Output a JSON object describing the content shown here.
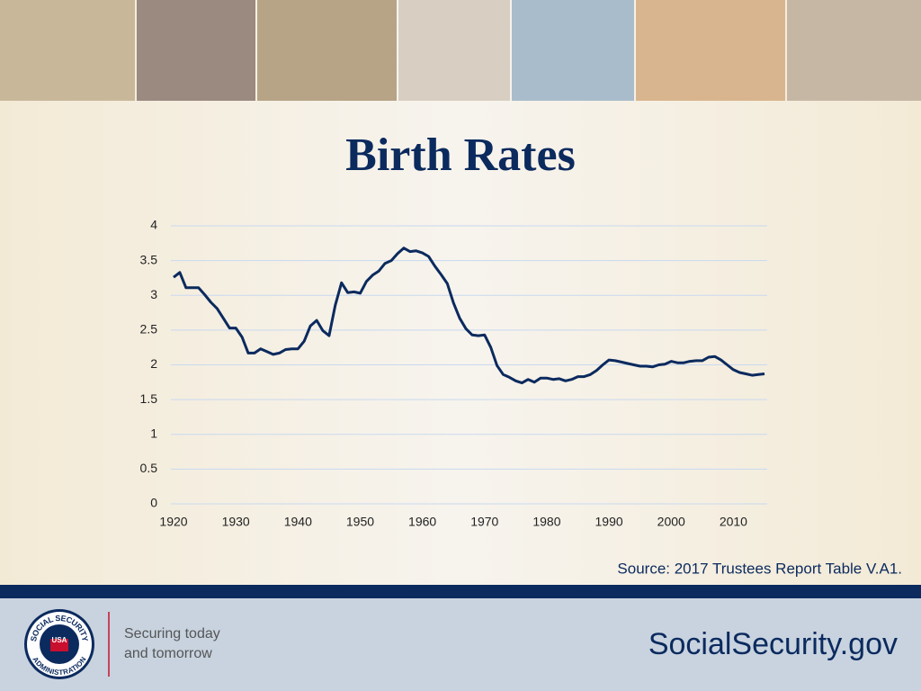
{
  "chart_data": {
    "type": "line",
    "title": "Birth Rates",
    "x": [
      1920,
      1921,
      1922,
      1923,
      1924,
      1925,
      1926,
      1927,
      1928,
      1929,
      1930,
      1931,
      1932,
      1933,
      1934,
      1935,
      1936,
      1937,
      1938,
      1939,
      1940,
      1941,
      1942,
      1943,
      1944,
      1945,
      1946,
      1947,
      1948,
      1949,
      1950,
      1951,
      1952,
      1953,
      1954,
      1955,
      1956,
      1957,
      1958,
      1959,
      1960,
      1961,
      1962,
      1963,
      1964,
      1965,
      1966,
      1967,
      1968,
      1969,
      1970,
      1971,
      1972,
      1973,
      1974,
      1975,
      1976,
      1977,
      1978,
      1979,
      1980,
      1981,
      1982,
      1983,
      1984,
      1985,
      1986,
      1987,
      1988,
      1989,
      1990,
      1991,
      1992,
      1993,
      1994,
      1995,
      1996,
      1997,
      1998,
      1999,
      2000,
      2001,
      2002,
      2003,
      2004,
      2005,
      2006,
      2007,
      2008,
      2009,
      2010,
      2011,
      2012,
      2013,
      2014,
      2015
    ],
    "series": [
      {
        "name": "Birth rate",
        "color": "#0b2a5e",
        "values": [
          3.26,
          3.33,
          3.11,
          3.11,
          3.11,
          3.01,
          2.9,
          2.81,
          2.67,
          2.53,
          2.53,
          2.4,
          2.17,
          2.17,
          2.23,
          2.19,
          2.15,
          2.17,
          2.22,
          2.23,
          2.23,
          2.34,
          2.56,
          2.64,
          2.49,
          2.42,
          2.86,
          3.18,
          3.04,
          3.05,
          3.03,
          3.2,
          3.29,
          3.35,
          3.46,
          3.5,
          3.6,
          3.68,
          3.63,
          3.64,
          3.61,
          3.56,
          3.42,
          3.3,
          3.17,
          2.89,
          2.67,
          2.52,
          2.43,
          2.42,
          2.43,
          2.25,
          1.99,
          1.86,
          1.82,
          1.77,
          1.74,
          1.79,
          1.75,
          1.81,
          1.81,
          1.79,
          1.8,
          1.77,
          1.79,
          1.83,
          1.83,
          1.86,
          1.92,
          2.0,
          2.07,
          2.06,
          2.04,
          2.02,
          2.0,
          1.98,
          1.98,
          1.97,
          2.0,
          2.01,
          2.05,
          2.03,
          2.03,
          2.05,
          2.06,
          2.06,
          2.11,
          2.12,
          2.07,
          2.0,
          1.93,
          1.89,
          1.87,
          1.85,
          1.86,
          1.87
        ]
      }
    ],
    "xlim": [
      1920,
      2015
    ],
    "xticks": [
      1920,
      1930,
      1940,
      1950,
      1960,
      1970,
      1980,
      1990,
      2000,
      2010
    ],
    "ylim": [
      0,
      4
    ],
    "yticks": [
      0,
      0.5,
      1,
      1.5,
      2,
      2.5,
      3,
      3.5,
      4
    ],
    "grid": true,
    "source": "Source: 2017 Trustees Report Table V.A1."
  },
  "footer": {
    "logo_top": "SOCIAL SECURITY",
    "logo_bottom": "ADMINISTRATION",
    "logo_center": "USA",
    "tagline_1": "Securing today",
    "tagline_2": "and tomorrow",
    "website": "SocialSecurity.gov"
  }
}
